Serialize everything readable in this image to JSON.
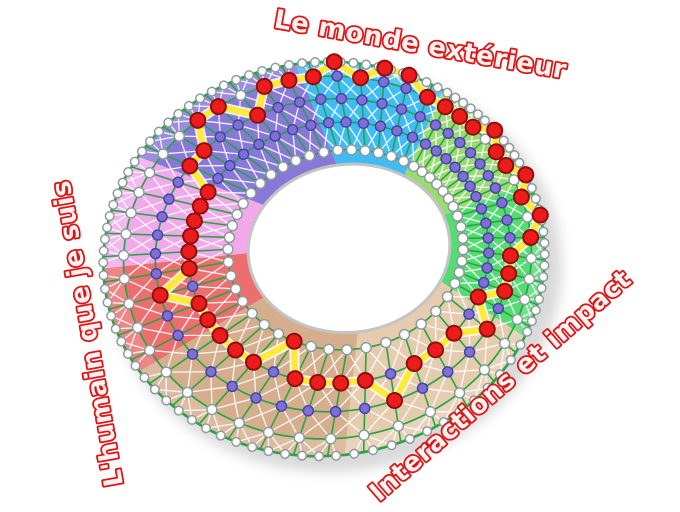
{
  "labels": {
    "color": "#DE1515",
    "top": {
      "text": "Le monde extérieur"
    },
    "left": {
      "text": "L'humain que je suis"
    },
    "bottom_right": {
      "text": "Interactions et impact"
    }
  },
  "chart_data": {
    "type": "radial-competency-wheel",
    "description": "Perspective torus wheel; each sector has spokes with 4 level rings plus outer boundary; red node marks the selected level on each spoke; yellow path links all selected levels.",
    "categories": [
      "Le monde extérieur",
      "L'humain que je suis",
      "Interactions et impact"
    ],
    "level_rings": [
      0.86,
      0.64,
      0.41,
      0.14
    ],
    "sectors": [
      {
        "id": "blue",
        "color": "#3FBCF5",
        "start": 92,
        "end": 52,
        "ring1_mid": true,
        "red_levels": [
          1,
          0,
          1,
          0,
          0,
          1
        ]
      },
      {
        "id": "light-green",
        "color": "#9BDB74",
        "start": 52,
        "end": 16,
        "ring1_mid": false,
        "red_levels": [
          1,
          1,
          1,
          0,
          1,
          1,
          0
        ]
      },
      {
        "id": "green",
        "color": "#54DC72",
        "start": 16,
        "end": -30,
        "ring1_mid": false,
        "red_levels": [
          1,
          0,
          1,
          2,
          2,
          2,
          3
        ]
      },
      {
        "id": "light-tan",
        "color": "#E5CCAE",
        "start": -30,
        "end": -90,
        "ring1_mid": false,
        "red_levels": [
          2,
          3,
          3,
          3,
          2,
          3
        ]
      },
      {
        "id": "tan",
        "color": "#D5AE8E",
        "start": -90,
        "end": -152,
        "ring1_mid": false,
        "red_levels": [
          3,
          3,
          3,
          4,
          3,
          3,
          3
        ]
      },
      {
        "id": "red",
        "color": "#EC6E6E",
        "start": -152,
        "end": -184,
        "ring1_mid": false,
        "red_levels": [
          3,
          3,
          2,
          3
        ]
      },
      {
        "id": "pink",
        "color": "#F2A9EC",
        "start": -184,
        "end": -218,
        "ring1_mid": false,
        "red_levels": [
          3,
          3,
          3,
          3,
          3
        ]
      },
      {
        "id": "purple",
        "color": "#8878D8",
        "start": -218,
        "end": -268,
        "ring1_mid": false,
        "red_levels": [
          2,
          2,
          1,
          1,
          2,
          1,
          1
        ]
      }
    ],
    "style": {
      "ring_line_color": "#28A444",
      "outer_edge_color": "#28A444",
      "mesh_line_color": "#FFFFFF",
      "path_color": "#FFE93B",
      "path_casing_color": "#FFFFFF",
      "node_default_fill": "#FFFFFF",
      "node_default_stroke": "#8F9AA0",
      "node_mid_fill": "#7C71D1",
      "node_mid_stroke": "#4B3FAF",
      "node_selected_fill": "#EC1C1C",
      "node_selected_stroke": "#8F0F0F",
      "hole_fill": "#FFFFFF",
      "hole_rim": "#C4C4C4",
      "shadow_color": "#8C8C8C",
      "background": "#FFFFFF"
    }
  }
}
